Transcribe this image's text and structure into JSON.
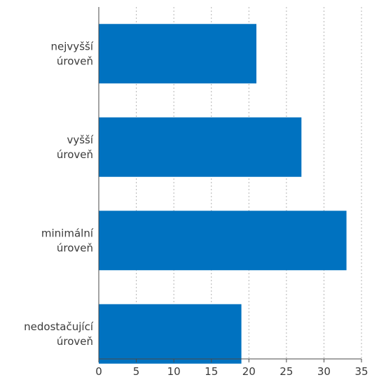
{
  "chart_data": {
    "type": "bar",
    "orientation": "horizontal",
    "categories": [
      [
        "nejvyšší",
        "úroveň"
      ],
      [
        "vyšší",
        "úroveň"
      ],
      [
        "minimální",
        "úroveň"
      ],
      [
        "nedostačující",
        "úroveň"
      ]
    ],
    "values": [
      21,
      27,
      33,
      19
    ],
    "xlim": [
      0,
      35
    ],
    "xticks": [
      "0",
      "5",
      "10",
      "15",
      "20",
      "25",
      "30",
      "35"
    ],
    "grid": "vertical-dotted",
    "legend": "none",
    "bar_color": "#0072c0"
  }
}
